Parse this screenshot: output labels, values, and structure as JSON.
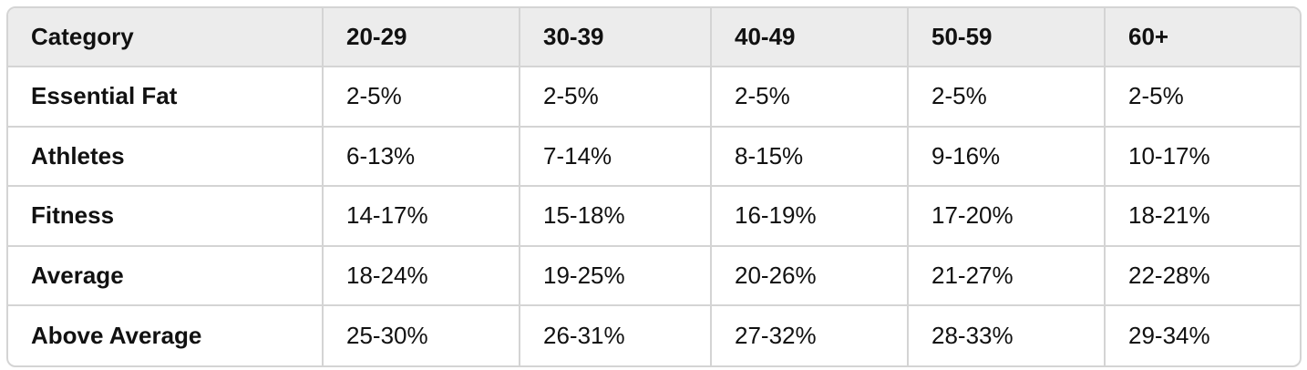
{
  "table": {
    "header": [
      "Category",
      "20-29",
      "30-39",
      "40-49",
      "50-59",
      "60+"
    ],
    "rows": [
      [
        "Essential Fat",
        "2-5%",
        "2-5%",
        "2-5%",
        "2-5%",
        "2-5%"
      ],
      [
        "Athletes",
        "6-13%",
        "7-14%",
        "8-15%",
        "9-16%",
        "10-17%"
      ],
      [
        "Fitness",
        "14-17%",
        "15-18%",
        "16-19%",
        "17-20%",
        "18-21%"
      ],
      [
        "Average",
        "18-24%",
        "19-25%",
        "20-26%",
        "21-27%",
        "22-28%"
      ],
      [
        "Above Average",
        "25-30%",
        "26-31%",
        "27-32%",
        "28-33%",
        "29-34%"
      ]
    ]
  }
}
